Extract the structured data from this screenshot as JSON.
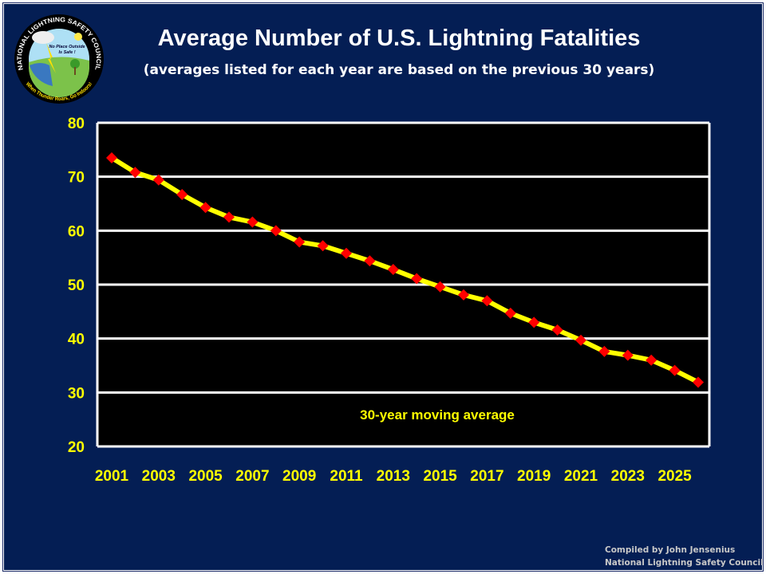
{
  "header": {
    "title": "Average Number of U.S. Lightning Fatalities",
    "subtitle": "(averages listed for each year are based on the previous  30 years)"
  },
  "logo": {
    "ring_text": "NATIONAL LIGHTNING SAFETY COUNCIL",
    "inner_text": "No Place Outside Is Safe !",
    "bottom_text": "When Thunder Roars, Go Indoors!"
  },
  "footer": {
    "line1": "Compiled by John Jensenius",
    "line2": "National Lightning Safety Council"
  },
  "colors": {
    "background": "#041E54",
    "plot_bg": "#000000",
    "line": "#FFFF00",
    "marker": "#FF0000",
    "tick_text": "#FFFF00",
    "grid": "#FFFFFF"
  },
  "chart_data": {
    "type": "line",
    "title": "Average Number of U.S. Lightning Fatalities",
    "subtitle": "(averages listed for each year are based on the previous  30 years)",
    "xlabel": "",
    "ylabel": "",
    "x": [
      2001,
      2002,
      2003,
      2004,
      2005,
      2006,
      2007,
      2008,
      2009,
      2010,
      2011,
      2012,
      2013,
      2014,
      2015,
      2016,
      2017,
      2018,
      2019,
      2020,
      2021,
      2022,
      2023,
      2024,
      2025,
      2026
    ],
    "x_tick_labels": [
      "2001",
      "2003",
      "2005",
      "2007",
      "2009",
      "2011",
      "2013",
      "2015",
      "2017",
      "2019",
      "2021",
      "2023",
      "2025"
    ],
    "y_ticks": [
      "20",
      "30",
      "40",
      "50",
      "60",
      "70",
      "80"
    ],
    "ylim": [
      20,
      80
    ],
    "grid": true,
    "series": [
      {
        "name": "30-year moving average",
        "values": [
          73.5,
          70.8,
          69.4,
          66.7,
          64.3,
          62.5,
          61.6,
          60.0,
          57.9,
          57.2,
          55.8,
          54.4,
          52.8,
          51.1,
          49.6,
          48.1,
          47.0,
          44.7,
          43.0,
          41.6,
          39.7,
          37.6,
          36.9,
          36.0,
          34.1,
          31.9
        ]
      }
    ],
    "annotation": "30-year moving average"
  }
}
